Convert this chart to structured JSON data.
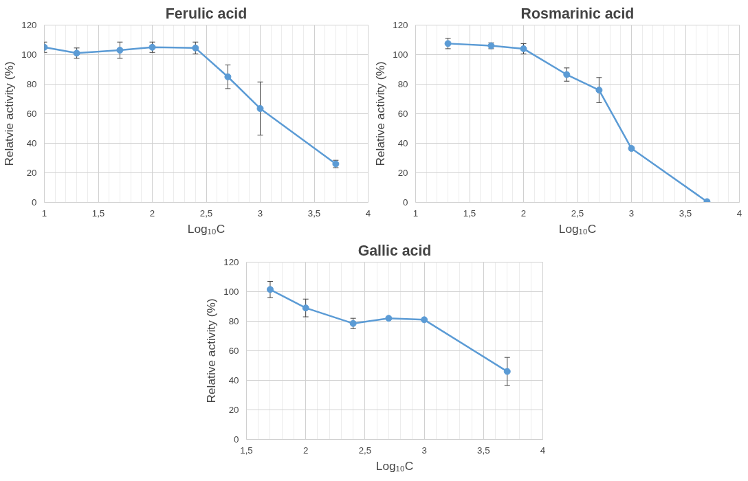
{
  "chart_data": [
    {
      "type": "line",
      "title": "Ferulic acid",
      "xlabel": "Log₁₀C",
      "ylabel": "Relatvie activity (%)",
      "x": [
        1,
        1.3,
        1.7,
        2,
        2.4,
        2.7,
        3,
        3.7
      ],
      "series": [
        {
          "color": "#5b9bd5",
          "values": [
            105,
            101,
            103,
            105,
            104.5,
            85,
            63.5,
            26
          ],
          "errors": [
            3.5,
            3.5,
            5.5,
            3.5,
            4,
            8,
            18,
            2.5
          ]
        }
      ],
      "xlim": [
        1,
        4
      ],
      "xticks": [
        1,
        {
          "value": 1.5,
          "label": "1,5"
        },
        2,
        {
          "value": 2.5,
          "label": "2,5"
        },
        3,
        {
          "value": 3.5,
          "label": "3,5"
        },
        4
      ],
      "ylim": [
        0,
        120
      ],
      "yticks": [
        0,
        20,
        40,
        60,
        80,
        100,
        120
      ],
      "grid": true,
      "marker": "circle",
      "line_style": "solid"
    },
    {
      "type": "line",
      "title": "Rosmarinic acid",
      "xlabel": "Log₁₀C",
      "ylabel": "Relative activity (%)",
      "x": [
        1.3,
        1.7,
        2,
        2.4,
        2.7,
        3,
        3.7
      ],
      "series": [
        {
          "color": "#5b9bd5",
          "values": [
            107.5,
            106,
            104,
            86.5,
            76,
            36.5,
            0.5
          ],
          "errors": [
            3.5,
            2,
            3.5,
            4.5,
            8.5,
            null,
            null
          ]
        }
      ],
      "xlim": [
        1,
        4
      ],
      "xticks": [
        1,
        {
          "value": 1.5,
          "label": "1,5"
        },
        2,
        {
          "value": 2.5,
          "label": "2,5"
        },
        3,
        {
          "value": 3.5,
          "label": "3,5"
        },
        4
      ],
      "ylim": [
        0,
        120
      ],
      "yticks": [
        0,
        20,
        40,
        60,
        80,
        100,
        120
      ],
      "grid": true,
      "marker": "circle",
      "line_style": "solid"
    },
    {
      "type": "line",
      "title": "Gallic acid",
      "xlabel": "Log₁₀C",
      "ylabel": "Relative activity (%)",
      "x": [
        1.7,
        2,
        2.4,
        2.7,
        3,
        3.7
      ],
      "series": [
        {
          "color": "#5b9bd5",
          "values": [
            101.5,
            89,
            78.5,
            82,
            81,
            46
          ],
          "errors": [
            5.5,
            6,
            3.5,
            null,
            null,
            9.5
          ]
        }
      ],
      "xlim": [
        1.5,
        4
      ],
      "xticks": [
        {
          "value": 1.5,
          "label": "1,5"
        },
        2,
        {
          "value": 2.5,
          "label": "2,5"
        },
        3,
        {
          "value": 3.5,
          "label": "3,5"
        },
        4
      ],
      "ylim": [
        0,
        120
      ],
      "yticks": [
        0,
        20,
        40,
        60,
        80,
        100,
        120
      ],
      "grid": true,
      "marker": "circle",
      "line_style": "solid"
    }
  ]
}
